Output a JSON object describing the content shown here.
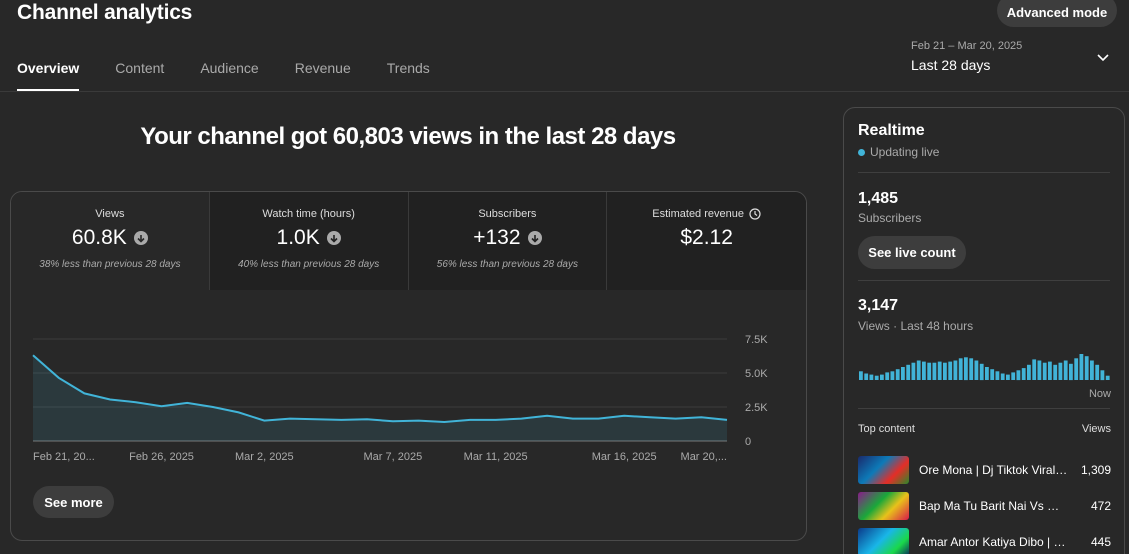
{
  "header": {
    "title": "Channel analytics",
    "advanced_mode": "Advanced mode"
  },
  "tabs": [
    "Overview",
    "Content",
    "Audience",
    "Revenue",
    "Trends"
  ],
  "date_range": {
    "range": "Feb 21 – Mar 20, 2025",
    "label": "Last 28 days"
  },
  "headline": "Your channel got 60,803 views in the last 28 days",
  "metrics": [
    {
      "label": "Views",
      "value": "60.8K",
      "sub": "38% less than previous 28 days",
      "trend_icon": "arrow-down-circle-icon"
    },
    {
      "label": "Watch time (hours)",
      "value": "1.0K",
      "sub": "40% less than previous 28 days",
      "trend_icon": "arrow-down-circle-icon"
    },
    {
      "label": "Subscribers",
      "value": "+132",
      "sub": "56% less than previous 28 days",
      "trend_icon": "arrow-down-circle-icon"
    },
    {
      "label": "Estimated revenue",
      "value": "$2.12",
      "sub": "",
      "info_icon": "clock-icon"
    }
  ],
  "chart_data": {
    "type": "area",
    "y_ticks": [
      "7.5K",
      "5.0K",
      "2.5K",
      "0"
    ],
    "ylim": [
      0,
      7500
    ],
    "x_tick_labels": [
      "Feb 21, 20...",
      "Feb 26, 2025",
      "Mar 2, 2025",
      "Mar 7, 2025",
      "Mar 11, 2025",
      "Mar 16, 2025",
      "Mar 20,..."
    ],
    "x_tick_index": [
      0,
      5,
      9,
      14,
      18,
      23,
      27
    ],
    "series": [
      {
        "values": [
          6300,
          4650,
          3500,
          3050,
          2850,
          2550,
          2800,
          2500,
          2100,
          1500,
          1650,
          1600,
          1550,
          1600,
          1450,
          1500,
          1400,
          1550,
          1550,
          1650,
          1850,
          1650,
          1650,
          1850,
          1750,
          1650,
          1750,
          1550
        ],
        "color": "#41b4d8"
      }
    ]
  },
  "see_more": "See more",
  "realtime": {
    "title": "Realtime",
    "status": "Updating live",
    "subscribers_value": "1,485",
    "subscribers_label": "Subscribers",
    "live_count_button": "See live count",
    "views_value": "3,147",
    "views_label": "Views · Last 48 hours",
    "now_label": "Now",
    "bars": [
      8,
      6,
      5,
      4,
      5,
      7,
      8,
      10,
      12,
      14,
      16,
      18,
      17,
      16,
      16,
      17,
      16,
      17,
      18,
      20,
      21,
      20,
      18,
      15,
      12,
      10,
      8,
      6,
      5,
      7,
      9,
      11,
      14,
      19,
      18,
      16,
      17,
      14,
      16,
      18,
      15,
      20,
      24,
      22,
      18,
      14,
      9,
      4
    ],
    "top_content_label": "Top content",
    "views_column_label": "Views",
    "top_content": [
      {
        "title": "Ore Mona | Dj Tiktok Viral Bangla Song",
        "views": "1,309"
      },
      {
        "title": "Bap Ma Tu Barit Nai Vs Mon Dj Remix",
        "views": "472"
      },
      {
        "title": "Amar Antor Katiya Dibo | Dj Remix",
        "views": "445"
      }
    ]
  }
}
